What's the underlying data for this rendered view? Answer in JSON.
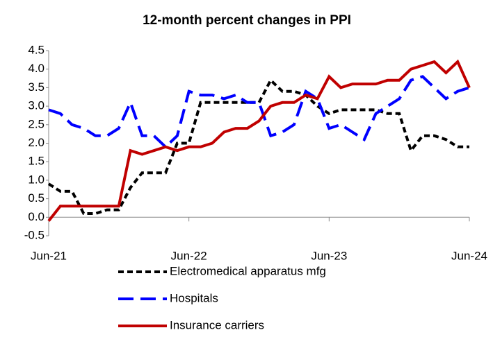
{
  "chart_data": {
    "type": "line",
    "title": "12-month percent changes in PPI",
    "categories": [
      "Jun-21",
      null,
      null,
      null,
      null,
      null,
      null,
      null,
      null,
      null,
      null,
      null,
      "Jun-22",
      null,
      null,
      null,
      null,
      null,
      null,
      null,
      null,
      null,
      null,
      null,
      "Jun-23",
      null,
      null,
      null,
      null,
      null,
      null,
      null,
      null,
      null,
      null,
      null,
      "Jun-24"
    ],
    "series": [
      {
        "name": "Electromedical apparatus mfg",
        "color": "#000000",
        "dash": "short",
        "values": [
          0.9,
          0.7,
          0.7,
          0.1,
          0.1,
          0.2,
          0.2,
          0.8,
          1.2,
          1.2,
          1.2,
          2.0,
          2.0,
          3.1,
          3.1,
          3.1,
          3.1,
          3.1,
          3.1,
          3.7,
          3.4,
          3.4,
          3.3,
          3.0,
          2.8,
          2.9,
          2.9,
          2.9,
          2.9,
          2.8,
          2.8,
          1.8,
          2.2,
          2.2,
          2.1,
          1.9,
          1.9
        ]
      },
      {
        "name": "Hospitals",
        "color": "#0000ff",
        "dash": "long",
        "values": [
          2.9,
          2.8,
          2.5,
          2.4,
          2.2,
          2.2,
          2.4,
          3.1,
          2.2,
          2.2,
          1.9,
          2.2,
          3.4,
          3.3,
          3.3,
          3.2,
          3.3,
          3.1,
          3.1,
          2.2,
          2.3,
          2.5,
          3.4,
          3.2,
          2.4,
          2.5,
          2.3,
          2.1,
          2.8,
          3.0,
          3.2,
          3.7,
          3.8,
          3.5,
          3.2,
          3.4,
          3.5
        ]
      },
      {
        "name": "Insurance carriers",
        "color": "#c00000",
        "dash": "solid",
        "values": [
          -0.1,
          0.3,
          0.3,
          0.3,
          0.3,
          0.3,
          0.3,
          1.8,
          1.7,
          1.8,
          1.9,
          1.8,
          1.9,
          1.9,
          2.0,
          2.3,
          2.4,
          2.4,
          2.6,
          3.0,
          3.1,
          3.1,
          3.3,
          3.2,
          3.8,
          3.5,
          3.6,
          3.6,
          3.6,
          3.7,
          3.7,
          4.0,
          4.1,
          4.2,
          3.9,
          4.2,
          3.5
        ]
      }
    ],
    "ylim": [
      -0.5,
      4.5
    ],
    "yticks": [
      4.5,
      {
        "value": 4,
        "label": "4.0"
      },
      3.5,
      {
        "value": 3,
        "label": "3.0"
      },
      2.5,
      {
        "value": 2,
        "label": "2.0"
      },
      1.5,
      {
        "value": 1,
        "label": "1.0"
      },
      0.5,
      {
        "value": 0,
        "label": "0.0"
      },
      -0.5
    ],
    "grid": false,
    "legend": "bottom"
  }
}
